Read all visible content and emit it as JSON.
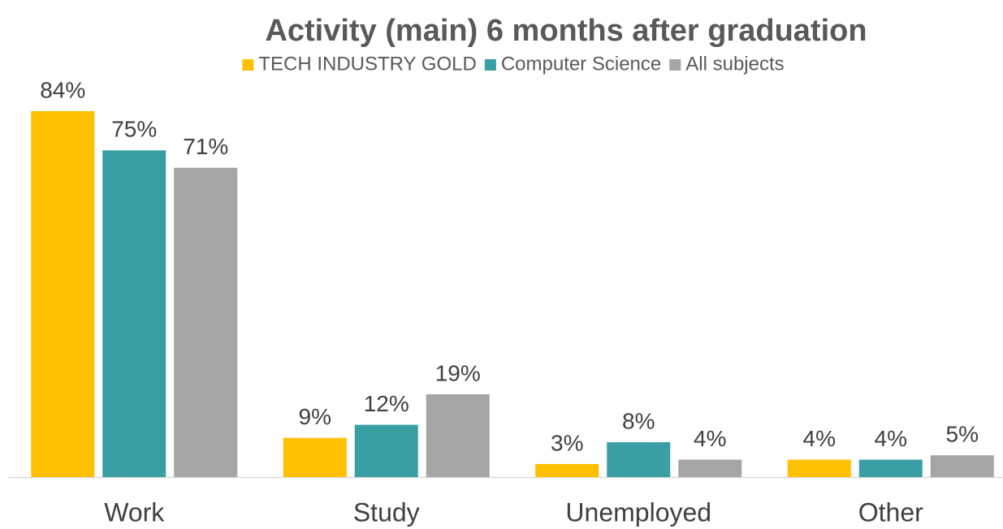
{
  "chart_data": {
    "type": "bar",
    "title": "Activity (main) 6 months after graduation",
    "categories": [
      "Work",
      "Study",
      "Unemployed",
      "Other"
    ],
    "series": [
      {
        "name": "TECH INDUSTRY GOLD",
        "color": "#ffc000",
        "values": [
          84,
          9,
          3,
          4
        ],
        "value_labels": [
          "84%",
          "9%",
          "3%",
          "4%"
        ]
      },
      {
        "name": "Computer Science",
        "color": "#3a9fa5",
        "values": [
          75,
          12,
          8,
          4
        ],
        "value_labels": [
          "75%",
          "12%",
          "8%",
          "4%"
        ]
      },
      {
        "name": "All subjects",
        "color": "#a5a5a5",
        "values": [
          71,
          19,
          4,
          5
        ],
        "value_labels": [
          "71%",
          "19%",
          "4%",
          "5%"
        ]
      }
    ],
    "legend": "top"
  }
}
